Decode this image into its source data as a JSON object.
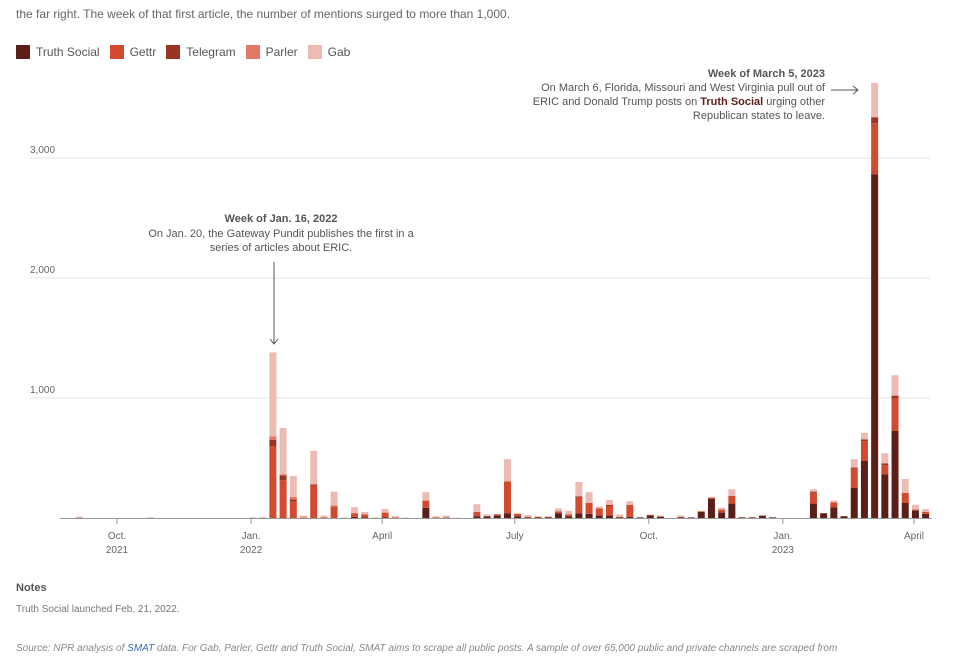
{
  "intro_text": "the far right. The week of that first article, the number of mentions surged to more than 1,000.",
  "colors": {
    "Truth Social": "#5c1f17",
    "Gettr": "#d24b2f",
    "Telegram": "#9a3425",
    "Parler": "#e07966",
    "Gab": "#ecbcb4"
  },
  "notes": {
    "heading": "Notes",
    "text": "Truth Social launched Feb. 21, 2022."
  },
  "source": {
    "prefix": "Source: NPR analysis of ",
    "link": "SMAT",
    "suffix": " data. For Gab, Parler, Gettr and Truth Social, SMAT aims to scrape all public posts. A sample of over 65,000 public and private channels are scraped from"
  },
  "chart_data": {
    "type": "bar",
    "stacked": true,
    "legend_placement": "top-left",
    "grid": "horizontal",
    "ylim": [
      0,
      3700
    ],
    "yticks": [
      {
        "value": 1000,
        "label": "1,000"
      },
      {
        "value": 2000,
        "label": "2,000"
      },
      {
        "value": 3000,
        "label": "3,000"
      }
    ],
    "xticks": [
      {
        "date": "2021-10-01",
        "label": "Oct.",
        "year": "2021"
      },
      {
        "date": "2022-01-01",
        "label": "Jan.",
        "year": "2022"
      },
      {
        "date": "2022-04-01",
        "label": "April",
        "year": ""
      },
      {
        "date": "2022-07-01",
        "label": "July",
        "year": ""
      },
      {
        "date": "2022-10-01",
        "label": "Oct.",
        "year": ""
      },
      {
        "date": "2023-01-01",
        "label": "Jan.",
        "year": "2023"
      },
      {
        "date": "2023-04-01",
        "label": "April",
        "year": ""
      }
    ],
    "weeks": [
      "2021-08-29",
      "2021-09-05",
      "2021-09-12",
      "2021-09-19",
      "2021-09-26",
      "2021-10-03",
      "2021-10-10",
      "2021-10-17",
      "2021-10-24",
      "2021-10-31",
      "2021-11-07",
      "2021-11-14",
      "2021-11-21",
      "2021-11-28",
      "2021-12-05",
      "2021-12-12",
      "2021-12-19",
      "2021-12-26",
      "2022-01-02",
      "2022-01-09",
      "2022-01-16",
      "2022-01-23",
      "2022-01-30",
      "2022-02-06",
      "2022-02-13",
      "2022-02-20",
      "2022-02-27",
      "2022-03-06",
      "2022-03-13",
      "2022-03-20",
      "2022-03-27",
      "2022-04-03",
      "2022-04-10",
      "2022-04-17",
      "2022-04-24",
      "2022-05-01",
      "2022-05-08",
      "2022-05-15",
      "2022-05-22",
      "2022-05-29",
      "2022-06-05",
      "2022-06-12",
      "2022-06-19",
      "2022-06-26",
      "2022-07-03",
      "2022-07-10",
      "2022-07-17",
      "2022-07-24",
      "2022-07-31",
      "2022-08-07",
      "2022-08-14",
      "2022-08-21",
      "2022-08-28",
      "2022-09-04",
      "2022-09-11",
      "2022-09-18",
      "2022-09-25",
      "2022-10-02",
      "2022-10-09",
      "2022-10-16",
      "2022-10-23",
      "2022-10-30",
      "2022-11-06",
      "2022-11-13",
      "2022-11-20",
      "2022-11-27",
      "2022-12-04",
      "2022-12-11",
      "2022-12-18",
      "2022-12-25",
      "2023-01-01",
      "2023-01-08",
      "2023-01-15",
      "2023-01-22",
      "2023-01-29",
      "2023-02-05",
      "2023-02-12",
      "2023-02-19",
      "2023-02-26",
      "2023-03-05",
      "2023-03-12",
      "2023-03-19",
      "2023-03-26",
      "2023-04-02",
      "2023-04-09"
    ],
    "series": [
      {
        "name": "Truth Social",
        "values": [
          0,
          0,
          0,
          0,
          0,
          0,
          0,
          0,
          0,
          0,
          0,
          0,
          0,
          0,
          0,
          0,
          0,
          0,
          0,
          0,
          0,
          0,
          0,
          0,
          0,
          0,
          0,
          0,
          10,
          5,
          0,
          5,
          0,
          0,
          0,
          85,
          0,
          0,
          0,
          0,
          15,
          15,
          20,
          40,
          15,
          5,
          5,
          5,
          40,
          15,
          40,
          35,
          20,
          20,
          5,
          10,
          5,
          20,
          10,
          0,
          5,
          5,
          50,
          160,
          45,
          120,
          5,
          5,
          20,
          5,
          0,
          0,
          0,
          120,
          40,
          90,
          15,
          250,
          475,
          2865,
          365,
          725,
          125,
          60,
          35
        ]
      },
      {
        "name": "Gettr",
        "values": [
          0,
          3,
          0,
          0,
          0,
          0,
          0,
          0,
          2,
          0,
          0,
          0,
          0,
          0,
          0,
          0,
          0,
          0,
          2,
          3,
          600,
          315,
          135,
          5,
          270,
          5,
          95,
          0,
          30,
          25,
          0,
          40,
          5,
          0,
          0,
          60,
          5,
          5,
          0,
          0,
          35,
          0,
          10,
          265,
          20,
          5,
          5,
          5,
          15,
          15,
          130,
          90,
          60,
          80,
          5,
          100,
          0,
          5,
          5,
          0,
          5,
          0,
          5,
          10,
          25,
          65,
          0,
          0,
          0,
          0,
          0,
          0,
          0,
          90,
          0,
          40,
          0,
          160,
          165,
          425,
          75,
          275,
          85,
          0,
          15
        ]
      },
      {
        "name": "Telegram",
        "values": [
          0,
          0,
          0,
          0,
          0,
          0,
          0,
          0,
          0,
          0,
          0,
          0,
          0,
          0,
          0,
          0,
          0,
          0,
          0,
          0,
          50,
          40,
          20,
          0,
          10,
          0,
          0,
          0,
          0,
          0,
          0,
          0,
          0,
          0,
          0,
          0,
          0,
          0,
          0,
          0,
          0,
          0,
          0,
          0,
          0,
          0,
          0,
          0,
          0,
          0,
          10,
          0,
          0,
          10,
          0,
          0,
          0,
          0,
          0,
          0,
          0,
          0,
          0,
          0,
          0,
          0,
          0,
          0,
          0,
          0,
          0,
          0,
          0,
          10,
          0,
          0,
          0,
          10,
          15,
          50,
          15,
          20,
          0,
          10,
          0
        ]
      },
      {
        "name": "Parler",
        "values": [
          0,
          0,
          0,
          0,
          0,
          0,
          0,
          0,
          0,
          0,
          0,
          0,
          0,
          0,
          0,
          0,
          0,
          0,
          0,
          0,
          30,
          10,
          20,
          0,
          0,
          0,
          10,
          0,
          0,
          0,
          0,
          0,
          0,
          0,
          0,
          0,
          0,
          0,
          0,
          0,
          0,
          0,
          0,
          0,
          0,
          0,
          0,
          0,
          0,
          0,
          0,
          0,
          0,
          0,
          0,
          0,
          0,
          0,
          0,
          0,
          0,
          0,
          0,
          0,
          0,
          0,
          0,
          0,
          0,
          0,
          0,
          0,
          0,
          0,
          0,
          0,
          0,
          0,
          0,
          0,
          0,
          0,
          0,
          0,
          0
        ]
      },
      {
        "name": "Gab",
        "values": [
          0,
          8,
          0,
          0,
          0,
          0,
          0,
          0,
          4,
          0,
          0,
          0,
          0,
          0,
          0,
          0,
          0,
          0,
          3,
          0,
          700,
          385,
          175,
          15,
          280,
          15,
          115,
          5,
          50,
          20,
          5,
          30,
          10,
          5,
          0,
          70,
          10,
          15,
          3,
          0,
          65,
          15,
          5,
          185,
          5,
          15,
          5,
          5,
          25,
          30,
          120,
          90,
          15,
          40,
          20,
          30,
          5,
          5,
          5,
          0,
          10,
          0,
          5,
          5,
          15,
          55,
          5,
          5,
          0,
          5,
          0,
          0,
          0,
          20,
          0,
          15,
          0,
          70,
          55,
          285,
          85,
          170,
          115,
          40,
          25
        ]
      }
    ],
    "annotations": [
      {
        "week": "2022-01-16",
        "title": "Week of Jan. 16, 2022",
        "lines": [
          "On Jan. 20, the Gateway Pundit publishes the first in a",
          "series of articles about ERIC."
        ]
      },
      {
        "week": "2023-03-05",
        "title": "Week of March 5, 2023",
        "line1": "On March 6, Florida, Missouri and West Virginia pull out of",
        "line2_pre": "ERIC and Donald Trump posts on ",
        "line2_bold": "Truth Social",
        "line2_post": " urging other",
        "line3": "Republican states to leave."
      }
    ]
  }
}
